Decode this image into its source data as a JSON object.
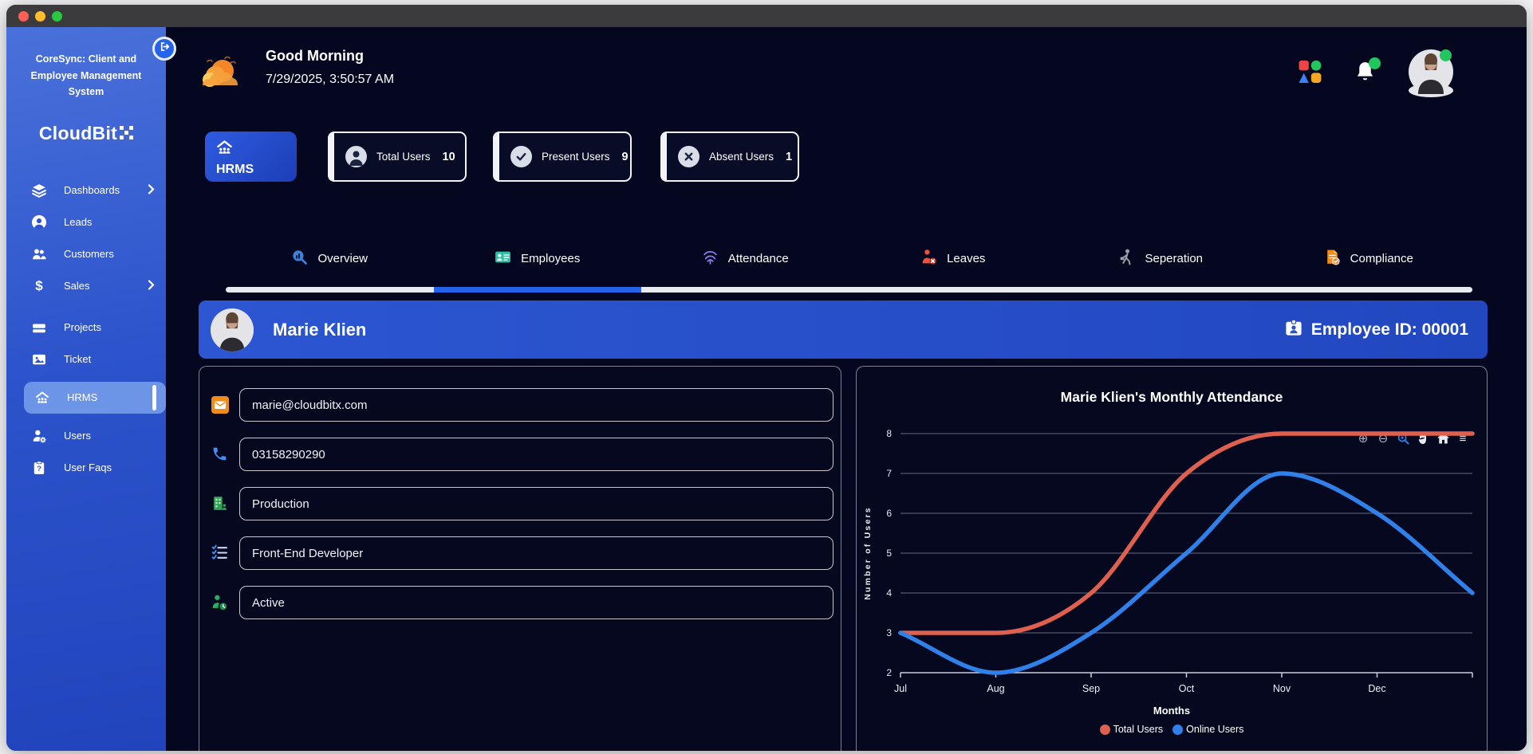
{
  "window": {
    "titlebar_buttons": [
      {
        "name": "close-button",
        "color": "#ff5f57"
      },
      {
        "name": "minimize-button",
        "color": "#febc2e"
      },
      {
        "name": "zoom-button",
        "color": "#28c840"
      }
    ]
  },
  "sidebar": {
    "brand": "CoreSync: Client and Employee Management System",
    "logo_text": "CloudBit",
    "logo_icon": "pixel-x-icon",
    "toggle_icon": "collapse-sidebar-icon",
    "items": [
      {
        "label": "Dashboards",
        "icon": "layers-icon",
        "has_submenu": true,
        "active": false
      },
      {
        "label": "Leads",
        "icon": "person-circle-icon",
        "has_submenu": false,
        "active": false
      },
      {
        "label": "Customers",
        "icon": "people-icon",
        "has_submenu": false,
        "active": false
      },
      {
        "label": "Sales",
        "icon": "dollar-icon",
        "has_submenu": true,
        "active": false
      },
      {
        "label": "Projects",
        "icon": "bars-icon",
        "has_submenu": false,
        "active": false
      },
      {
        "label": "Ticket",
        "icon": "image-card-icon",
        "has_submenu": false,
        "active": false
      },
      {
        "label": "HRMS",
        "icon": "house-people-icon",
        "has_submenu": false,
        "active": true
      },
      {
        "label": "Users",
        "icon": "user-gear-icon",
        "has_submenu": false,
        "active": false
      },
      {
        "label": "User Faqs",
        "icon": "clipboard-question-icon",
        "has_submenu": false,
        "active": false
      }
    ]
  },
  "header": {
    "greeting": "Good Morning",
    "datetime": "7/29/2025, 3:50:57 AM",
    "weather_icon": "cloud-sun-icon",
    "right_icons": [
      "apps-grid-icon",
      "bell-icon",
      "avatar"
    ],
    "notification_dot_color": "#22c55e"
  },
  "stats": {
    "module_label": "HRMS",
    "module_icon": "house-people-icon",
    "cards": [
      {
        "label": "Total Users",
        "value": "10",
        "icon": "user-circle-icon"
      },
      {
        "label": "Present Users",
        "value": "9",
        "icon": "check-circle-icon"
      },
      {
        "label": "Absent Users",
        "value": "1",
        "icon": "x-circle-icon"
      }
    ]
  },
  "tabs": [
    {
      "label": "Overview",
      "icon": "magnifier-chart-icon",
      "active": false
    },
    {
      "label": "Employees",
      "icon": "id-card-icon",
      "active": true
    },
    {
      "label": "Attendance",
      "icon": "fingerprint-icon",
      "active": false
    },
    {
      "label": "Leaves",
      "icon": "person-x-icon",
      "active": false
    },
    {
      "label": "Seperation",
      "icon": "person-leaving-icon",
      "active": false
    },
    {
      "label": "Compliance",
      "icon": "document-check-icon",
      "active": false
    }
  ],
  "employee": {
    "name": "Marie Klien",
    "id_label": "Employee ID: 00001",
    "id_icon": "id-badge-icon",
    "fields": [
      {
        "value": "marie@cloudbitx.com",
        "icon": "email-icon"
      },
      {
        "value": "03158290290",
        "icon": "phone-icon"
      },
      {
        "value": "Production",
        "icon": "department-building-icon"
      },
      {
        "value": "Front-End Developer",
        "icon": "checklist-icon"
      },
      {
        "value": "Active",
        "icon": "person-clock-icon"
      }
    ]
  },
  "chart_data": {
    "type": "line",
    "title": "Marie Klien's Monthly Attendance",
    "xlabel": "Months",
    "ylabel": "Number of Users",
    "categories": [
      "Jul",
      "Aug",
      "Sep",
      "Oct",
      "Nov",
      "Dec"
    ],
    "ylim": [
      2,
      8
    ],
    "y_ticks": [
      2,
      3,
      4,
      5,
      6,
      7,
      8
    ],
    "grid": true,
    "curve": "smooth-monotone",
    "note": "curves extend one unlabeled step beyond Dec to the right edge",
    "series": [
      {
        "name": "Total Users",
        "color": "#e0604f",
        "values": [
          3,
          3,
          4,
          7,
          8,
          8,
          8
        ]
      },
      {
        "name": "Online Users",
        "color": "#2f80e8",
        "values": [
          3,
          2,
          3,
          5,
          7,
          6,
          4
        ]
      }
    ],
    "legend_position": "bottom",
    "toolbar_icons": [
      "zoom-in-icon",
      "zoom-out-icon",
      "selection-zoom-icon",
      "pan-icon",
      "reset-home-icon",
      "menu-icon"
    ]
  },
  "colors": {
    "accent_blue": "#2563eb",
    "sidebar_active": "#6c95e8",
    "banner_blue": "#2a52c9",
    "status_green": "#22c55e"
  }
}
